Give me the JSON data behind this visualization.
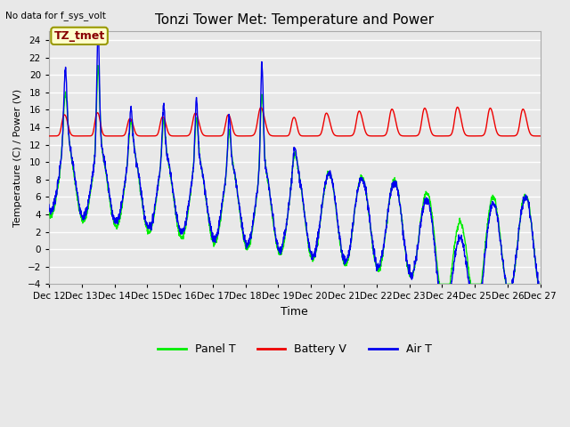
{
  "title": "Tonzi Tower Met: Temperature and Power",
  "top_left_text": "No data for f_sys_volt",
  "annotation_text": "TZ_tmet",
  "xlabel": "Time",
  "ylabel": "Temperature (C) / Power (V)",
  "ylim": [
    -4,
    25
  ],
  "yticks": [
    -4,
    -2,
    0,
    2,
    4,
    6,
    8,
    10,
    12,
    14,
    16,
    18,
    20,
    22,
    24
  ],
  "xtick_labels": [
    "Dec 12",
    "Dec 13",
    "Dec 14",
    "Dec 15",
    "Dec 16",
    "Dec 17",
    "Dec 18",
    "Dec 19",
    "Dec 20",
    "Dec 21",
    "Dec 22",
    "Dec 23",
    "Dec 24",
    "Dec 25",
    "Dec 26",
    "Dec 27"
  ],
  "background_color": "#e8e8e8",
  "plot_bg_color": "#e8e8e8",
  "grid_color": "#ffffff",
  "panel_t_color": "#00ee00",
  "battery_v_color": "#ee0000",
  "air_t_color": "#0000ee",
  "line_width": 1.0,
  "figsize": [
    6.4,
    4.8
  ],
  "dpi": 100
}
